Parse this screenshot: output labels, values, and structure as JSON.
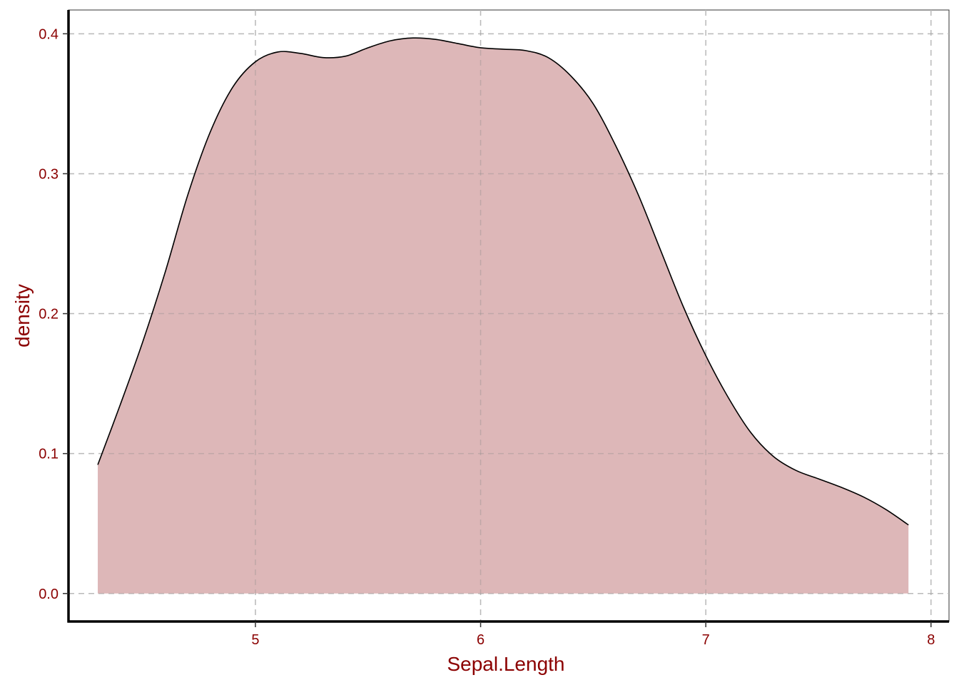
{
  "chart_data": {
    "type": "area",
    "title": "",
    "xlabel": "Sepal.Length",
    "ylabel": "density",
    "xlim": [
      4.17,
      8.08
    ],
    "ylim": [
      -0.02,
      0.417
    ],
    "x_ticks": [
      5,
      6,
      7,
      8
    ],
    "x_tick_labels": [
      "5",
      "6",
      "7",
      "8"
    ],
    "y_ticks": [
      0.0,
      0.1,
      0.2,
      0.3,
      0.4
    ],
    "y_tick_labels": [
      "0.0",
      "0.1",
      "0.2",
      "0.3",
      "0.4"
    ],
    "grid": true,
    "grid_style": "dashed",
    "legend": "none",
    "series": [
      {
        "x": [
          4.3,
          4.4,
          4.5,
          4.6,
          4.7,
          4.8,
          4.9,
          5.0,
          5.1,
          5.2,
          5.3,
          5.4,
          5.5,
          5.6,
          5.7,
          5.8,
          5.9,
          6.0,
          6.1,
          6.2,
          6.3,
          6.4,
          6.5,
          6.6,
          6.7,
          6.8,
          6.9,
          7.0,
          7.1,
          7.2,
          7.3,
          7.4,
          7.5,
          7.6,
          7.7,
          7.8,
          7.9
        ],
        "y": [
          0.092,
          0.135,
          0.18,
          0.23,
          0.285,
          0.33,
          0.362,
          0.38,
          0.387,
          0.386,
          0.383,
          0.384,
          0.39,
          0.395,
          0.397,
          0.396,
          0.393,
          0.39,
          0.389,
          0.388,
          0.383,
          0.37,
          0.35,
          0.32,
          0.285,
          0.245,
          0.205,
          0.17,
          0.14,
          0.115,
          0.098,
          0.088,
          0.082,
          0.076,
          0.069,
          0.06,
          0.049
        ]
      }
    ]
  },
  "colors": {
    "fill": "#dbb3b4",
    "line": "#000000",
    "text": "#8b0000",
    "grid": "#d3d3d3",
    "axis": "#000000",
    "background": "#ffffff"
  }
}
